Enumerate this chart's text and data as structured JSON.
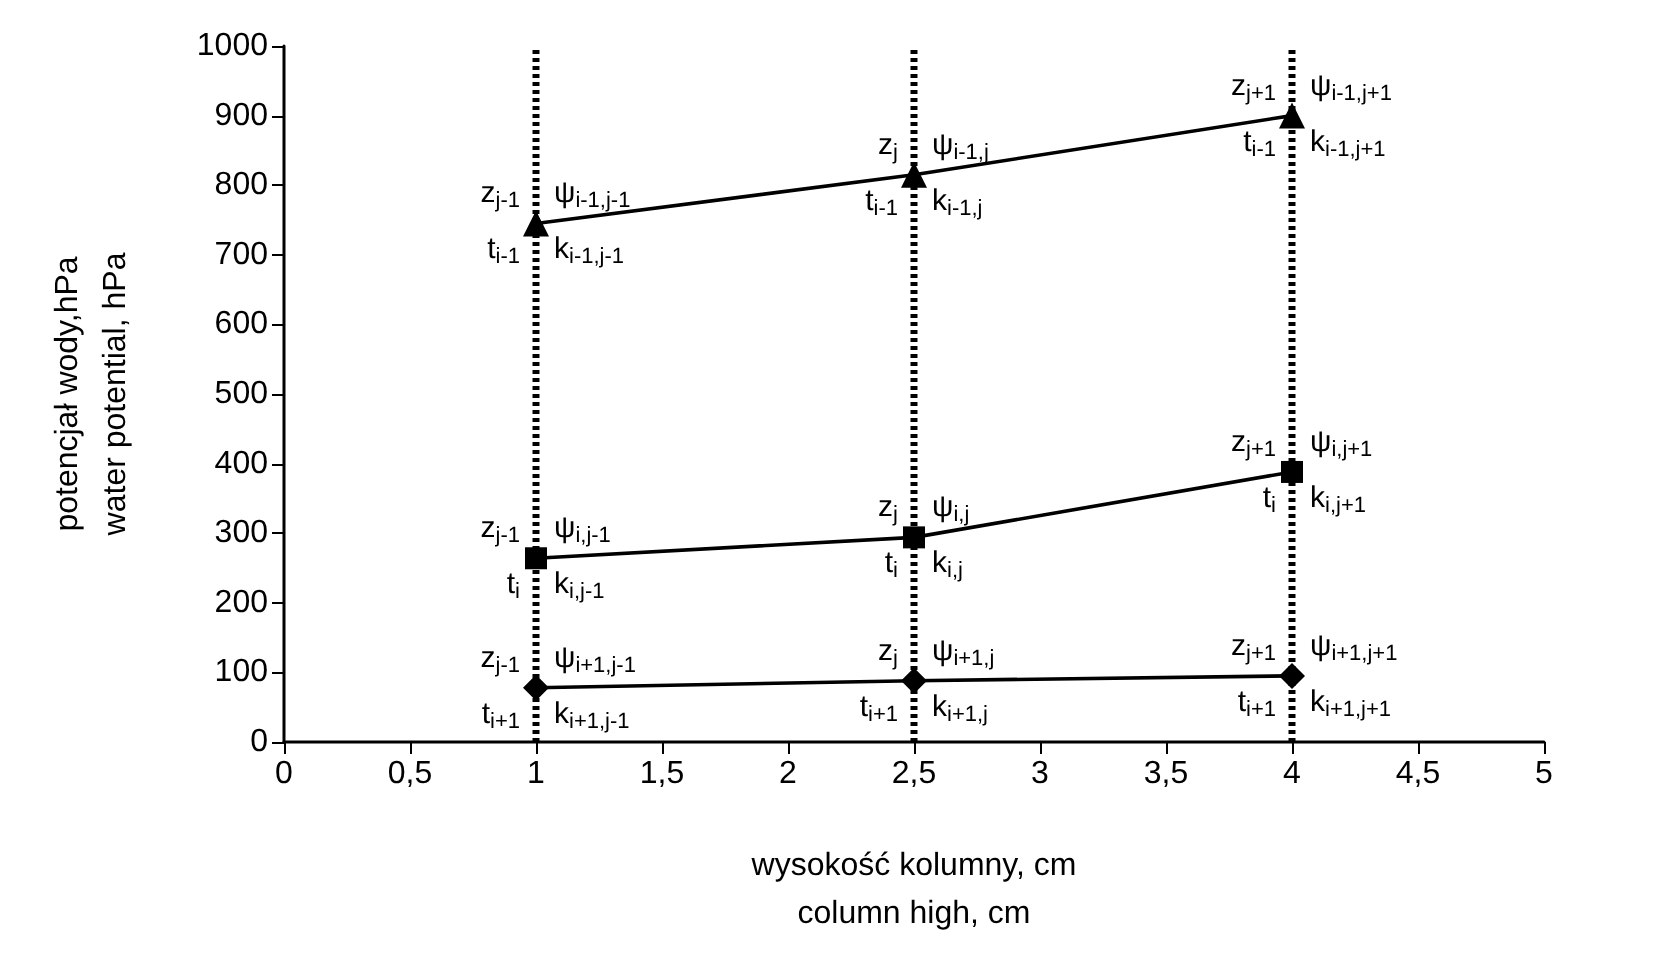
{
  "chart_data": {
    "type": "line",
    "xlabel": "wysokość kolumny, cm\ncolumn high, cm",
    "ylabel": "potencjał wody,hPa\nwater potential, hPa",
    "xlim": [
      0,
      5
    ],
    "xticks": [
      0,
      {
        "value": 0.5,
        "label": "0,5"
      },
      1,
      {
        "value": 1.5,
        "label": "1,5"
      },
      2,
      {
        "value": 2.5,
        "label": "2,5"
      },
      3,
      {
        "value": 3.5,
        "label": "3,5"
      },
      4,
      {
        "value": 4.5,
        "label": "4,5"
      },
      5
    ],
    "ylim": [
      0,
      1000
    ],
    "yticks": [
      0,
      100,
      200,
      300,
      400,
      500,
      600,
      700,
      800,
      900,
      1000
    ],
    "series": [
      {
        "color": "#000000",
        "x": [
          1,
          2.5,
          4
        ],
        "values": [
          745,
          815,
          900
        ],
        "marker": "triangle"
      },
      {
        "color": "#000000",
        "x": [
          1,
          2.5,
          4
        ],
        "values": [
          264,
          294,
          388
        ],
        "marker": "square"
      },
      {
        "color": "#000000",
        "x": [
          1,
          2.5,
          4
        ],
        "values": [
          78,
          88,
          95
        ],
        "marker": "diamond"
      }
    ],
    "ref_lines": [
      {
        "axis": "x",
        "value": 1,
        "color": "#000000",
        "line_style": "dotted"
      },
      {
        "axis": "x",
        "value": 2.5,
        "color": "#000000",
        "line_style": "dotted"
      },
      {
        "axis": "x",
        "value": 4,
        "color": "#000000",
        "line_style": "dotted"
      }
    ],
    "annotations": [
      {
        "text": "z$_{j-1}$",
        "x": 1,
        "y": 745
      },
      {
        "text": "t$_{i-1}$",
        "x": 1,
        "y": 745
      },
      {
        "text": "ψ$_{i-1,j-1}$",
        "x": 1,
        "y": 745
      },
      {
        "text": "k$_{i-1,j-1}$",
        "x": 1,
        "y": 745
      },
      {
        "text": "z$_{j}$",
        "x": 2.5,
        "y": 815
      },
      {
        "text": "t$_{i-1}$",
        "x": 2.5,
        "y": 815
      },
      {
        "text": "ψ$_{i-1,j}$",
        "x": 2.5,
        "y": 815
      },
      {
        "text": "k$_{i-1,j}$",
        "x": 2.5,
        "y": 815
      },
      {
        "text": "z$_{j+1}$",
        "x": 4,
        "y": 900
      },
      {
        "text": "t$_{i-1}$",
        "x": 4,
        "y": 900
      },
      {
        "text": "ψ$_{i-1,j+1}$",
        "x": 4,
        "y": 900
      },
      {
        "text": "k$_{i-1,j+1}$",
        "x": 4,
        "y": 900
      },
      {
        "text": "z$_{j-1}$",
        "x": 1,
        "y": 264
      },
      {
        "text": "t$_{i}$",
        "x": 1,
        "y": 264
      },
      {
        "text": "ψ$_{i,j-1}$",
        "x": 1,
        "y": 264
      },
      {
        "text": "k$_{i,j-1}$",
        "x": 1,
        "y": 264
      },
      {
        "text": "z$_{j}$",
        "x": 2.5,
        "y": 294
      },
      {
        "text": "t$_{i}$",
        "x": 2.5,
        "y": 294
      },
      {
        "text": "ψ$_{i,j}$",
        "x": 2.5,
        "y": 294
      },
      {
        "text": "k$_{i,j}$",
        "x": 2.5,
        "y": 294
      },
      {
        "text": "z$_{j+1}$",
        "x": 4,
        "y": 388
      },
      {
        "text": "t$_{i}$",
        "x": 4,
        "y": 388
      },
      {
        "text": "ψ$_{i,j+1}$",
        "x": 4,
        "y": 388
      },
      {
        "text": "k$_{i,j+1}$",
        "x": 4,
        "y": 388
      },
      {
        "text": "z$_{j-1}$",
        "x": 1,
        "y": 78
      },
      {
        "text": "t$_{i+1}$",
        "x": 1,
        "y": 78
      },
      {
        "text": "ψ$_{i+1,j-1}$",
        "x": 1,
        "y": 78
      },
      {
        "text": "k$_{i+1,j-1}$",
        "x": 1,
        "y": 78
      },
      {
        "text": "z$_{j}$",
        "x": 2.5,
        "y": 88
      },
      {
        "text": "t$_{i+1}$",
        "x": 2.5,
        "y": 88
      },
      {
        "text": "ψ$_{i+1,j}$",
        "x": 2.5,
        "y": 88
      },
      {
        "text": "k$_{i+1,j}$",
        "x": 2.5,
        "y": 88
      },
      {
        "text": "z$_{j+1}$",
        "x": 4,
        "y": 95
      },
      {
        "text": "t$_{i+1}$",
        "x": 4,
        "y": 95
      },
      {
        "text": "ψ$_{i+1,j+1}$",
        "x": 4,
        "y": 95
      },
      {
        "text": "k$_{i+1,j+1}$",
        "x": 4,
        "y": 95
      }
    ]
  }
}
